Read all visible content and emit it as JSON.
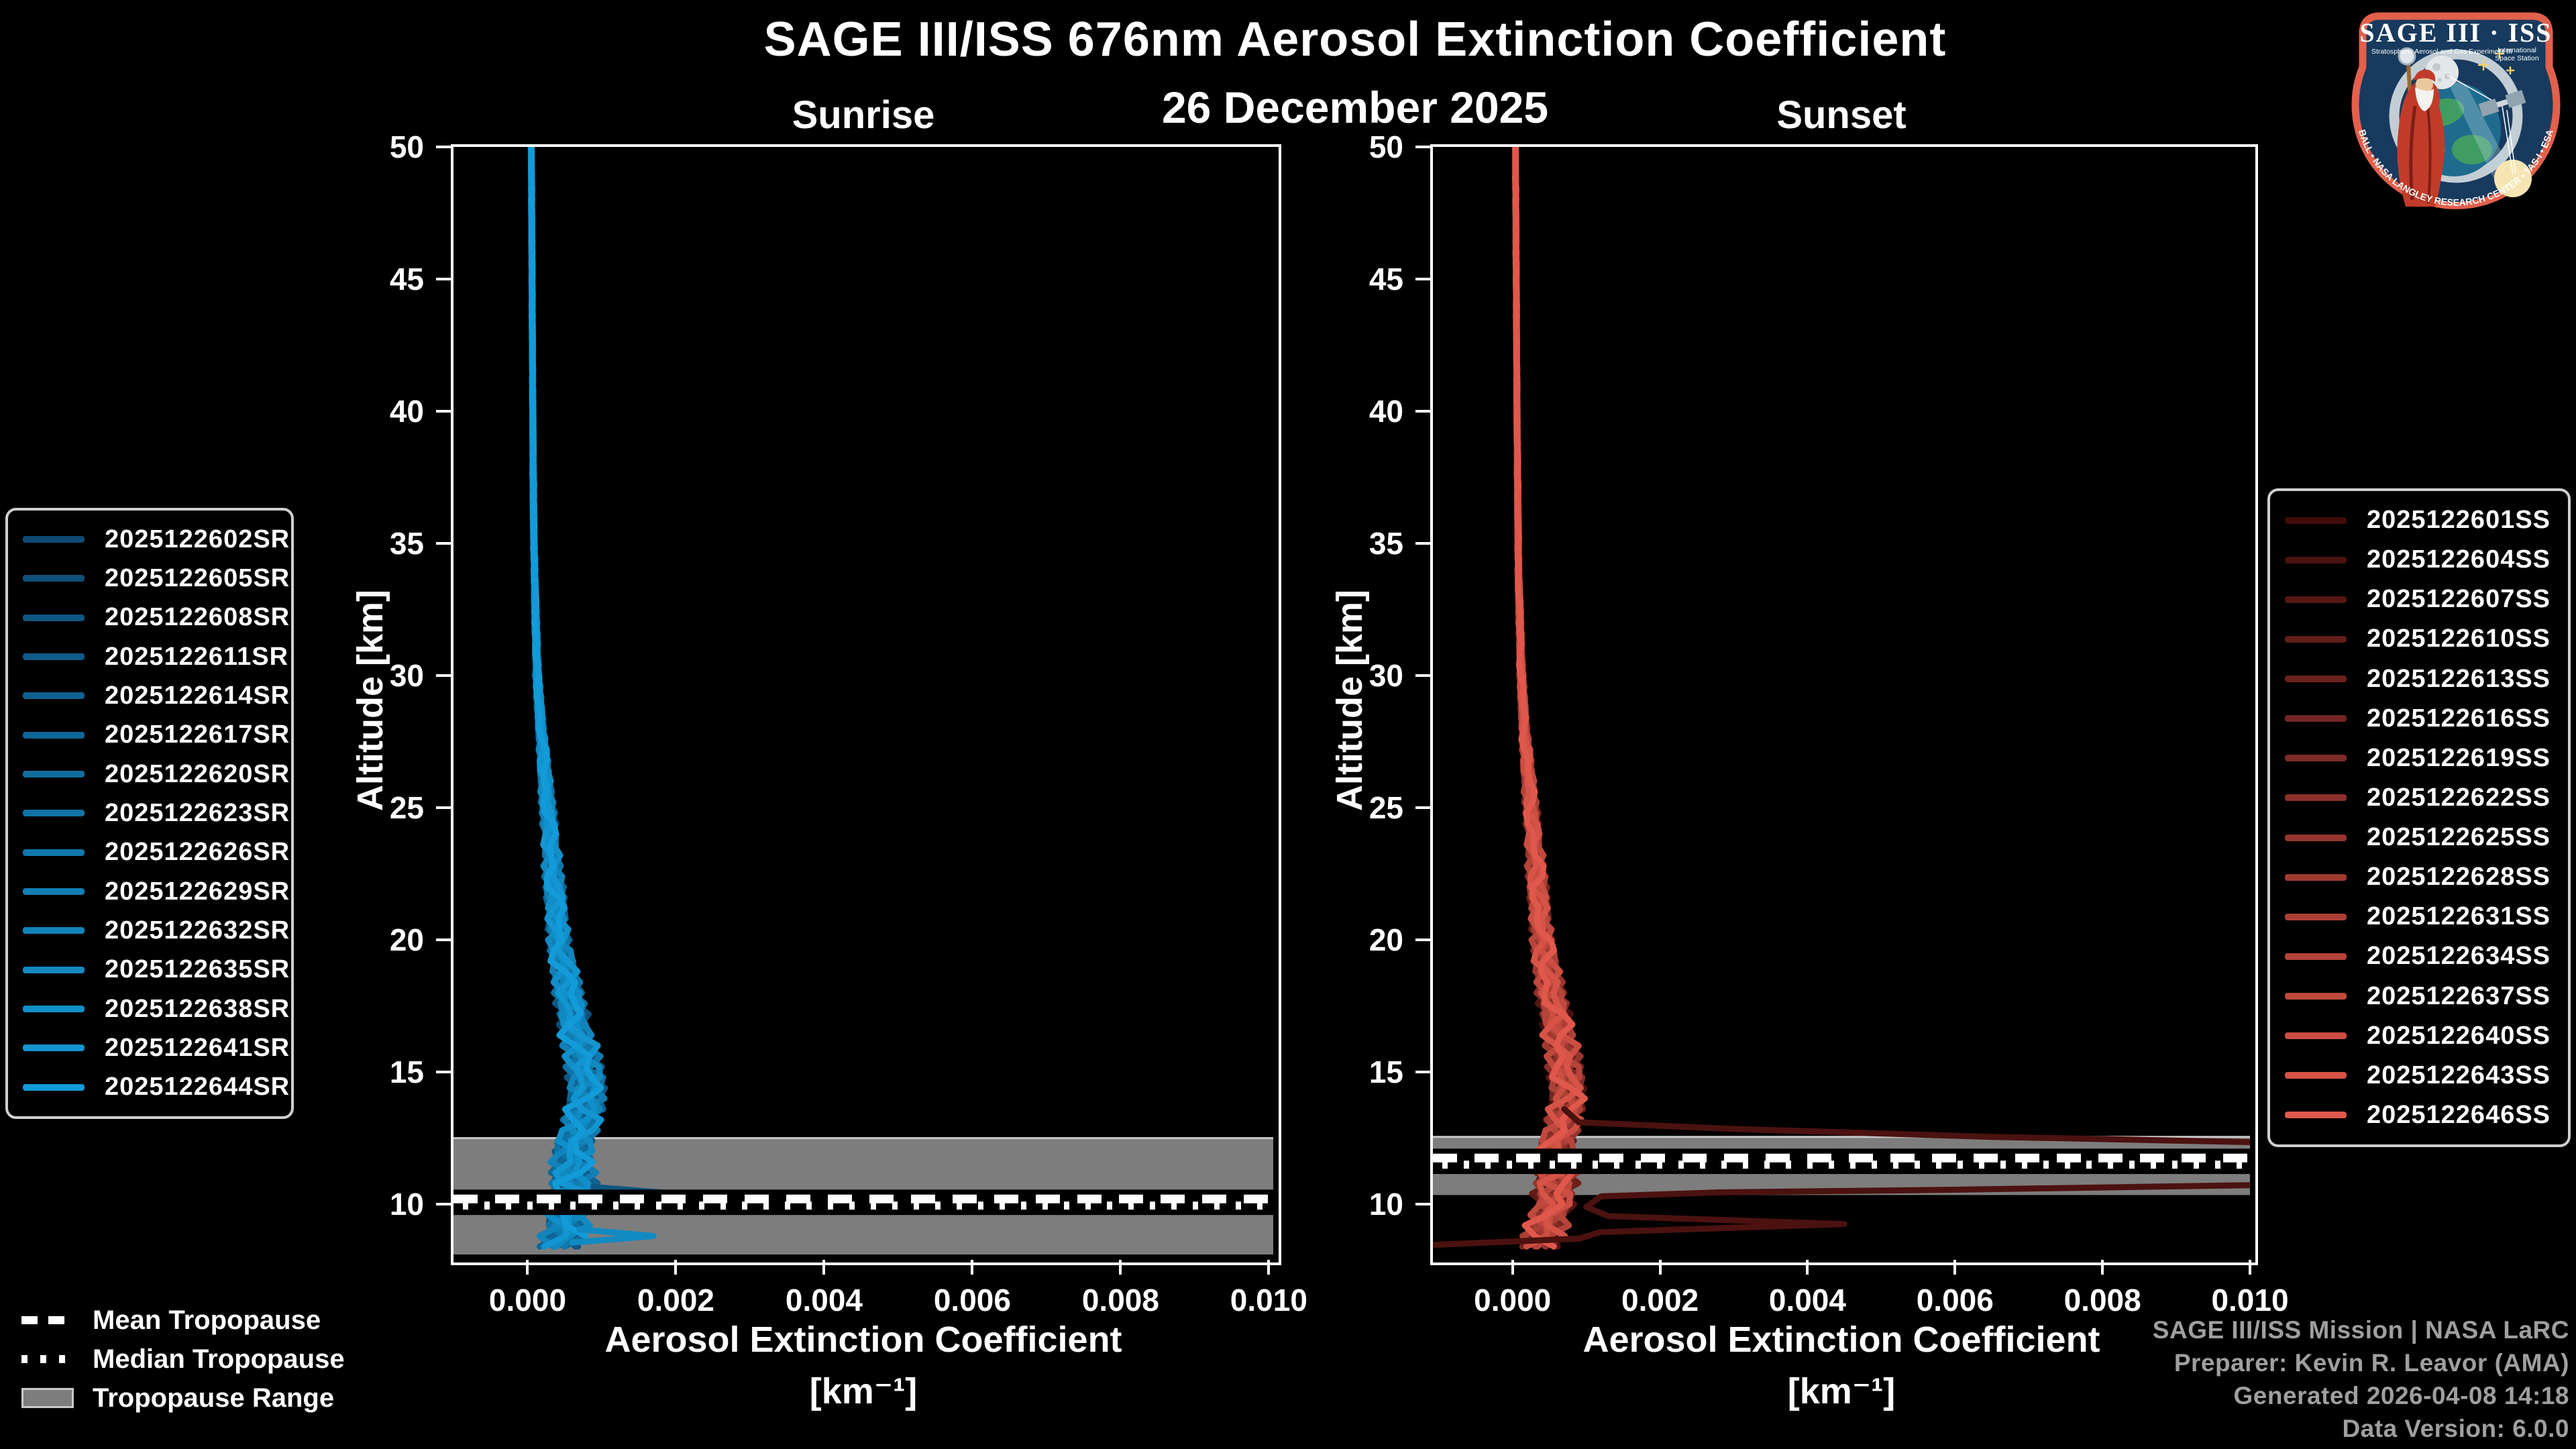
{
  "title": "SAGE III/ISS 676nm Aerosol Extinction Coefficient",
  "subtitle": "26 December 2025",
  "footer": {
    "lines": [
      "SAGE III/ISS Mission | NASA LaRC",
      "Preparer: Kevin R. Leavor (AMA)",
      "Generated 2026-04-08 14:18",
      "Data Version: 6.0.0"
    ]
  },
  "tropopause_legend": {
    "mean_label": "Mean Tropopause",
    "median_label": "Median Tropopause",
    "range_label": "Tropopause Range"
  },
  "logo": {
    "title": "SAGE III · ISS",
    "subtitle_left": "Stratospheric Aerosol and Gas Experiment III",
    "subtitle_right_1": "International",
    "subtitle_right_2": "Space Station",
    "rim_text": "BALL • NASA LANGLEY RESEARCH CENTER • TAS-I • ESA"
  },
  "colors": {
    "background": "#000000",
    "spine": "#ffffff",
    "tropopause_band": "#7d7d7d",
    "tropopause_band_edge": "#c9c9c9",
    "tropopause_line": "#ffffff",
    "footer_text": "#9f9f9f",
    "legend_border": "#cfcfcf"
  },
  "chart_data": [
    {
      "type": "line",
      "id": "sunrise",
      "title": "Sunrise",
      "xlabel_line1": "Aerosol Extinction Coefficient",
      "xlabel_line2": "[km⁻¹]",
      "ylabel": "Altitude [km]",
      "xlim": [
        -0.001,
        0.01006
      ],
      "ylim": [
        8,
        50
      ],
      "xticks": [
        0.0,
        0.002,
        0.004,
        0.006,
        0.008,
        0.01
      ],
      "xtick_labels": [
        "0.000",
        "0.002",
        "0.004",
        "0.006",
        "0.008",
        "0.010"
      ],
      "yticks": [
        10,
        15,
        20,
        25,
        30,
        35,
        40,
        45,
        50
      ],
      "legend_position": "left",
      "line_color_start": "#0E4A73",
      "line_color_end": "#129BD8",
      "series": [
        "2025122602SR",
        "2025122605SR",
        "2025122608SR",
        "2025122611SR",
        "2025122614SR",
        "2025122617SR",
        "2025122620SR",
        "2025122623SR",
        "2025122626SR",
        "2025122629SR",
        "2025122632SR",
        "2025122635SR",
        "2025122638SR",
        "2025122641SR",
        "2025122644SR"
      ],
      "base_profile": [
        [
          8.2,
          0.00045
        ],
        [
          9,
          0.0005
        ],
        [
          10,
          0.0006
        ],
        [
          11,
          0.00062
        ],
        [
          12,
          0.0006
        ],
        [
          13,
          0.00072
        ],
        [
          14,
          0.0008
        ],
        [
          15,
          0.00078
        ],
        [
          16,
          0.0007
        ],
        [
          17,
          0.00062
        ],
        [
          18,
          0.00055
        ],
        [
          20,
          0.00042
        ],
        [
          22,
          0.00036
        ],
        [
          24,
          0.0003
        ],
        [
          26,
          0.00024
        ],
        [
          28,
          0.00018
        ],
        [
          30,
          0.00013
        ],
        [
          33,
          0.0001
        ],
        [
          36,
          8e-05
        ],
        [
          40,
          7e-05
        ],
        [
          45,
          6e-05
        ],
        [
          50,
          5e-05
        ]
      ],
      "spread_profile": [
        [
          8.2,
          0.00032
        ],
        [
          10,
          0.00035
        ],
        [
          12,
          0.0003
        ],
        [
          14,
          0.00028
        ],
        [
          16,
          0.00025
        ],
        [
          18,
          0.0002
        ],
        [
          20,
          0.00016
        ],
        [
          23,
          0.00012
        ],
        [
          26,
          8e-05
        ],
        [
          28,
          5e-05
        ],
        [
          30,
          3e-05
        ],
        [
          34,
          1.5e-05
        ],
        [
          40,
          1e-05
        ],
        [
          50,
          8e-06
        ]
      ],
      "outlier_segments": [
        {
          "series_index": 2,
          "points": [
            [
              0.0009,
              10.65
            ],
            [
              0.0018,
              10.45
            ],
            [
              0.0022,
              10.3
            ],
            [
              0.0012,
              10.15
            ]
          ]
        },
        {
          "series_index": 11,
          "points": [
            [
              0.0007,
              9.05
            ],
            [
              0.0013,
              8.9
            ],
            [
              0.0017,
              8.8
            ],
            [
              0.0006,
              8.55
            ]
          ]
        }
      ],
      "tropopause": {
        "mean_km": 10.2,
        "median_km": 9.95,
        "range_top_km": 12.5,
        "range_bottom_km": 8.1
      }
    },
    {
      "type": "line",
      "id": "sunset",
      "title": "Sunset",
      "xlabel_line1": "Aerosol Extinction Coefficient",
      "xlabel_line2": "[km⁻¹]",
      "ylabel": "Altitude [km]",
      "xlim": [
        -0.00108,
        0.01
      ],
      "ylim": [
        8,
        50
      ],
      "xticks": [
        0.0,
        0.002,
        0.004,
        0.006,
        0.008,
        0.01
      ],
      "xtick_labels": [
        "0.000",
        "0.002",
        "0.004",
        "0.006",
        "0.008",
        "0.010"
      ],
      "yticks": [
        10,
        15,
        20,
        25,
        30,
        35,
        40,
        45,
        50
      ],
      "legend_position": "right",
      "line_color_start": "#400D0B",
      "line_color_end": "#E0584B",
      "series": [
        "2025122601SS",
        "2025122604SS",
        "2025122607SS",
        "2025122610SS",
        "2025122613SS",
        "2025122616SS",
        "2025122619SS",
        "2025122622SS",
        "2025122625SS",
        "2025122628SS",
        "2025122631SS",
        "2025122634SS",
        "2025122637SS",
        "2025122640SS",
        "2025122643SS",
        "2025122646SS"
      ],
      "base_profile": [
        [
          8.2,
          0.0004
        ],
        [
          9,
          0.00045
        ],
        [
          10,
          0.00055
        ],
        [
          11,
          0.0006
        ],
        [
          12,
          0.00058
        ],
        [
          13,
          0.00068
        ],
        [
          14,
          0.00075
        ],
        [
          15,
          0.00072
        ],
        [
          16,
          0.00066
        ],
        [
          18,
          0.00052
        ],
        [
          20,
          0.0004
        ],
        [
          22,
          0.00034
        ],
        [
          24,
          0.00028
        ],
        [
          26,
          0.00022
        ],
        [
          28,
          0.00016
        ],
        [
          30,
          0.00012
        ],
        [
          34,
          8e-05
        ],
        [
          40,
          6e-05
        ],
        [
          45,
          5e-05
        ],
        [
          50,
          4e-05
        ]
      ],
      "spread_profile": [
        [
          8.2,
          0.0003
        ],
        [
          10,
          0.00032
        ],
        [
          12,
          0.00028
        ],
        [
          14,
          0.00026
        ],
        [
          16,
          0.00024
        ],
        [
          18,
          0.0002
        ],
        [
          20,
          0.00016
        ],
        [
          23,
          0.00012
        ],
        [
          26,
          8e-05
        ],
        [
          28,
          5e-05
        ],
        [
          30,
          3e-05
        ],
        [
          34,
          1.5e-05
        ],
        [
          40,
          1e-05
        ],
        [
          50,
          8e-06
        ]
      ],
      "outlier_segments": [
        {
          "series_index": 1,
          "points": [
            [
              0.0007,
              13.6
            ],
            [
              0.0009,
              13.1
            ],
            [
              0.003,
              12.85
            ],
            [
              0.0065,
              12.55
            ],
            [
              0.0118,
              12.25
            ],
            [
              0.0118,
              10.8
            ],
            [
              0.006,
              10.55
            ],
            [
              0.0028,
              10.45
            ],
            [
              0.0012,
              10.3
            ],
            [
              0.001,
              9.9
            ],
            [
              0.0013,
              9.55
            ],
            [
              0.0045,
              9.25
            ],
            [
              0.0012,
              8.95
            ],
            [
              0.0009,
              8.7
            ],
            [
              -0.0016,
              8.4
            ]
          ]
        }
      ],
      "tropopause": {
        "mean_km": 11.75,
        "median_km": 11.5,
        "range_top_km": 12.55,
        "range_bottom_km": 10.35
      }
    }
  ]
}
